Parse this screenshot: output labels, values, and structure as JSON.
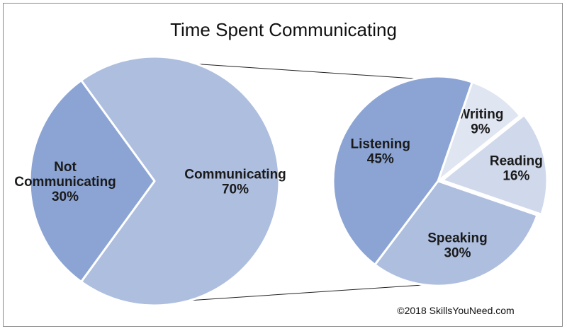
{
  "chart_data": [
    {
      "type": "pie",
      "title": "Time Spent Communicating",
      "slices": [
        {
          "label": "Communicating",
          "value": 70,
          "value_label": "70%",
          "color": "#adbedf"
        },
        {
          "label": "Not Communicating",
          "value": 30,
          "value_label": "30%",
          "color": "#8ba4d4"
        }
      ]
    },
    {
      "type": "pie",
      "slices": [
        {
          "label": "Writing",
          "value": 9,
          "value_label": "9%",
          "color": "#dfe5f1"
        },
        {
          "label": "Reading",
          "value": 16,
          "value_label": "16%",
          "color": "#d0d8eb"
        },
        {
          "label": "Speaking",
          "value": 30,
          "value_label": "30%",
          "color": "#adbedf"
        },
        {
          "label": "Listening",
          "value": 45,
          "value_label": "45%",
          "color": "#8ba4d4"
        }
      ]
    }
  ],
  "credit": "©2018 SkillsYouNeed.com",
  "colors": {
    "border": "#8a8a8a",
    "connector": "#222222",
    "separator": "#ffffff"
  }
}
